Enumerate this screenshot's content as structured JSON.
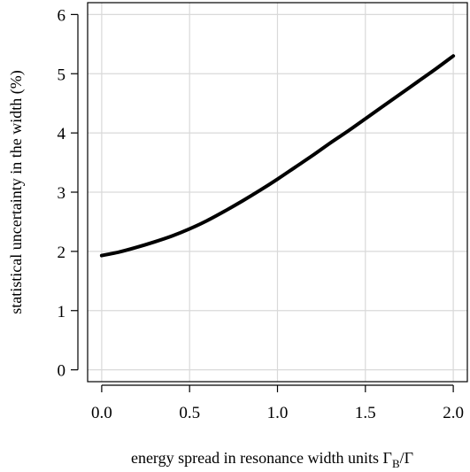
{
  "chart_data": {
    "type": "line",
    "title": "",
    "xlabel": "energy spread in resonance width units Γ",
    "xlabel_subscript": "B",
    "xlabel_suffix": "/Γ",
    "ylabel": "statistical uncertainty in the width (%)",
    "xlim": [
      -0.08,
      2.08
    ],
    "ylim": [
      -0.2,
      6.2
    ],
    "x_ticks": [
      0.0,
      0.5,
      1.0,
      1.5,
      2.0
    ],
    "x_tick_labels": [
      "0.0",
      "0.5",
      "1.0",
      "1.5",
      "2.0"
    ],
    "y_ticks": [
      0,
      1,
      2,
      3,
      4,
      5,
      6
    ],
    "y_tick_labels": [
      "0",
      "1",
      "2",
      "3",
      "4",
      "5",
      "6"
    ],
    "grid": true,
    "legend": "none",
    "series": [
      {
        "color": "#000000",
        "x": [
          0.0,
          0.1,
          0.2,
          0.3,
          0.4,
          0.5,
          0.6,
          0.7,
          0.8,
          0.9,
          1.0,
          1.1,
          1.2,
          1.3,
          1.4,
          1.5,
          1.6,
          1.7,
          1.8,
          1.9,
          2.0
        ],
        "y": [
          1.93,
          1.99,
          2.07,
          2.16,
          2.26,
          2.38,
          2.52,
          2.68,
          2.85,
          3.03,
          3.22,
          3.42,
          3.62,
          3.83,
          4.03,
          4.24,
          4.45,
          4.66,
          4.87,
          5.08,
          5.3
        ]
      }
    ]
  }
}
